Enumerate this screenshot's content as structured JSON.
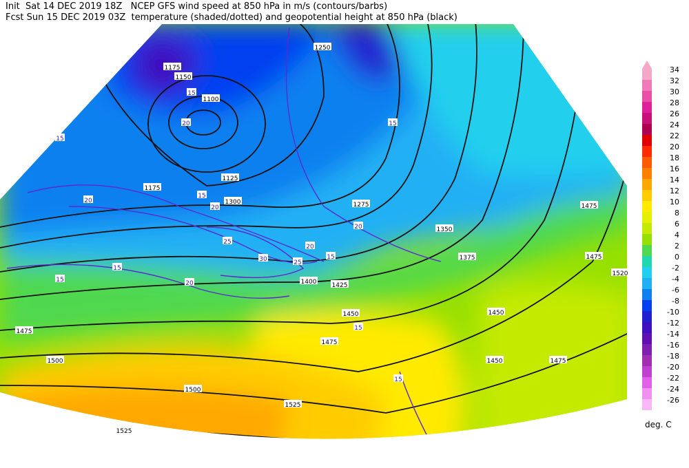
{
  "header": {
    "line1": "Init  Sat 14 DEC 2019 18Z   NCEP GFS wind speed at 850 hPa in m/s (contours/barbs)",
    "line2": "Fcst Sun 15 DEC 2019 03Z  temperature (shaded/dotted) and geopotential height at 850 hPa (black)"
  },
  "colorbar": {
    "levels": [
      34,
      32,
      30,
      28,
      26,
      24,
      22,
      20,
      18,
      16,
      14,
      12,
      10,
      8,
      6,
      4,
      2,
      0,
      -2,
      -4,
      -6,
      -8,
      -10,
      -12,
      -14,
      -16,
      -18,
      -20,
      -22,
      -24,
      -26
    ],
    "colors": [
      "#f4a8c8",
      "#f07ab8",
      "#e850a8",
      "#e0209a",
      "#c8107a",
      "#b00050",
      "#e00000",
      "#ff2a00",
      "#ff5a00",
      "#ff8000",
      "#ffa800",
      "#ffcc00",
      "#ffea00",
      "#e4f000",
      "#c4ea00",
      "#96e000",
      "#50d850",
      "#20d8b0",
      "#20d0ee",
      "#20b0f4",
      "#1080f0",
      "#0040f0",
      "#2020d0",
      "#4010c0",
      "#6010b0",
      "#8020b0",
      "#a030b0",
      "#c040d0",
      "#e060e8",
      "#f090f0",
      "#f8b8f8"
    ],
    "unit": "deg. C"
  },
  "contour_labels": [
    "1250",
    "1175",
    "1150",
    "1100",
    "1125",
    "1175",
    "1275",
    "1300",
    "1350",
    "1375",
    "1400",
    "1425",
    "1450",
    "1475",
    "1475",
    "1500",
    "1500",
    "1525",
    "1525",
    "1450",
    "1450",
    "1475",
    "1475",
    "1475",
    "1520"
  ],
  "wind_labels": [
    "15",
    "20",
    "15",
    "20",
    "15",
    "20",
    "25",
    "30",
    "25",
    "20",
    "15",
    "15",
    "20",
    "15",
    "15",
    "20",
    "15",
    "15"
  ]
}
